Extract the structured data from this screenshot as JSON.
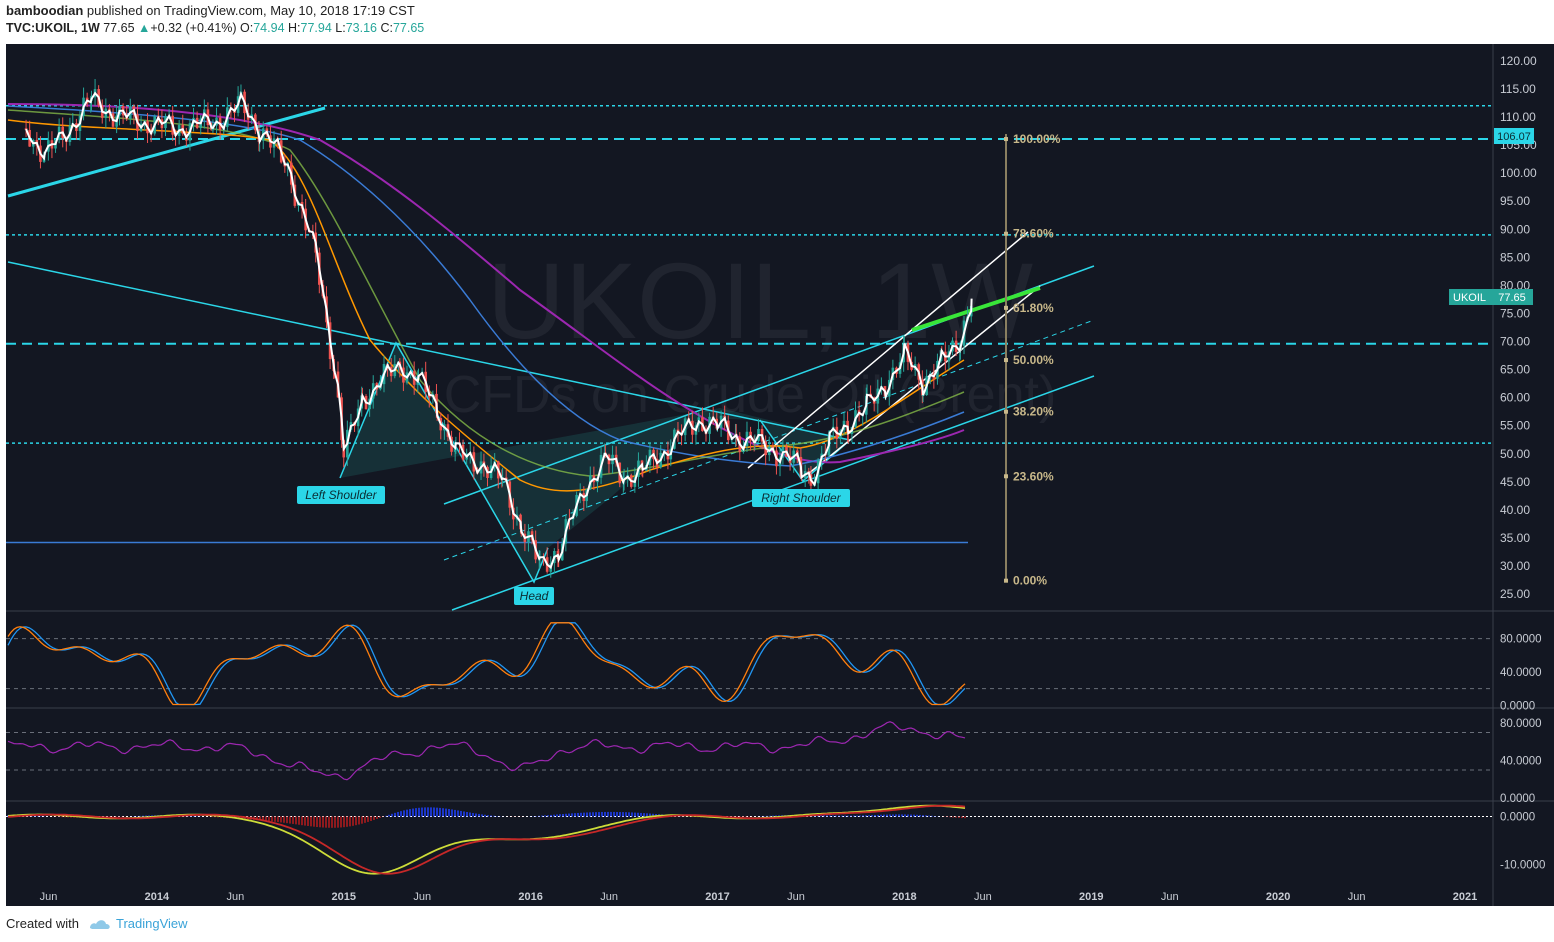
{
  "header": {
    "user": "bamboodian",
    "published": "published on TradingView.com, May 10, 2018 17:19 CST",
    "symbol": "TVC:UKOIL, 1W",
    "last": "77.65",
    "change": "+0.32 (+0.41%)",
    "o_label": "O:",
    "o_val": "74.94",
    "h_label": "H:",
    "h_val": "77.94",
    "l_label": "L:",
    "l_val": "73.16",
    "c_label": "C:",
    "c_val": "77.65"
  },
  "watermark": {
    "line1": "UKOIL, 1W",
    "line2": "CFDs on Crude Oil (Brent)"
  },
  "footer": {
    "created": "Created with",
    "brand": "TradingView"
  },
  "colors": {
    "background": "#131722",
    "bullish": "#26a69a",
    "bearish": "#ef5350",
    "cyan": "#2bd6e8",
    "white": "#ffffff",
    "green_line": "#39e639",
    "fib": "#c8b88a",
    "purple": "#9c27b0"
  },
  "chart_data": [
    {
      "type": "line",
      "panel": "price",
      "title": "UKOIL, 1W",
      "ylim": [
        22,
        123
      ],
      "y_ticks": [
        120,
        115,
        110,
        105,
        100,
        95,
        90,
        85,
        80,
        75,
        70,
        65,
        60,
        55,
        50,
        45,
        40,
        35,
        30,
        25
      ],
      "y_tick_labels": [
        "120.00",
        "115.00",
        "110.00",
        "105.00",
        "100.00",
        "95.00",
        "90.00",
        "85.00",
        "80.00",
        "75.00",
        "70.00",
        "65.00",
        "60.00",
        "55.00",
        "50.00",
        "45.00",
        "40.00",
        "35.00",
        "30.00",
        "25.00"
      ],
      "x_ticks": [
        "Jun",
        "2014",
        "Jun",
        "2015",
        "Jun",
        "2016",
        "Jun",
        "2017",
        "Jun",
        "2018",
        "Jun",
        "2019",
        "Jun",
        "2020",
        "Jun",
        "2021"
      ],
      "series": [
        {
          "name": "UKOIL",
          "values": [
            [
              2013.3,
              108
            ],
            [
              2013.4,
              103
            ],
            [
              2013.55,
              109
            ],
            [
              2013.65,
              113
            ],
            [
              2013.8,
              110
            ],
            [
              2013.95,
              109
            ],
            [
              2014.1,
              108
            ],
            [
              2014.3,
              109
            ],
            [
              2014.45,
              112
            ],
            [
              2014.55,
              108
            ],
            [
              2014.7,
              101
            ],
            [
              2014.85,
              85
            ],
            [
              2014.95,
              65
            ],
            [
              2015.0,
              50
            ],
            [
              2015.1,
              60
            ],
            [
              2015.3,
              66
            ],
            [
              2015.4,
              63
            ],
            [
              2015.5,
              58
            ],
            [
              2015.6,
              50
            ],
            [
              2015.75,
              48
            ],
            [
              2015.85,
              45
            ],
            [
              2015.95,
              37
            ],
            [
              2016.05,
              30
            ],
            [
              2016.15,
              33
            ],
            [
              2016.3,
              45
            ],
            [
              2016.4,
              49
            ],
            [
              2016.5,
              46
            ],
            [
              2016.6,
              47
            ],
            [
              2016.75,
              52
            ],
            [
              2016.9,
              56
            ],
            [
              2017.0,
              55
            ],
            [
              2017.1,
              53
            ],
            [
              2017.2,
              52
            ],
            [
              2017.35,
              50
            ],
            [
              2017.45,
              47
            ],
            [
              2017.5,
              46
            ],
            [
              2017.6,
              52
            ],
            [
              2017.7,
              56
            ],
            [
              2017.8,
              58
            ],
            [
              2017.9,
              63
            ],
            [
              2018.0,
              67
            ],
            [
              2018.1,
              63
            ],
            [
              2018.2,
              66
            ],
            [
              2018.3,
              71
            ],
            [
              2018.36,
              77.65
            ]
          ]
        }
      ],
      "horizontal_levels": [
        112,
        106.07,
        89,
        69.6,
        51.9,
        34.2
      ],
      "last_price_label": "UKOIL",
      "last_price_value": "77.65",
      "level_label": "106.07",
      "fibonacci": {
        "levels": [
          {
            "label": "100.00%",
            "price": 106.07
          },
          {
            "label": "78.60%",
            "price": 89.2
          },
          {
            "label": "61.80%",
            "price": 76.0
          },
          {
            "label": "50.00%",
            "price": 66.7
          },
          {
            "label": "38.20%",
            "price": 57.5
          },
          {
            "label": "23.60%",
            "price": 46.0
          },
          {
            "label": "0.00%",
            "price": 27.4
          }
        ]
      },
      "annotations": [
        "Left Shoulder",
        "Head",
        "Right Shoulder"
      ]
    },
    {
      "type": "line",
      "panel": "stochastic",
      "ylim": [
        -2,
        112
      ],
      "y_ticks": [
        80,
        40,
        0
      ],
      "y_tick_labels": [
        "80.0000",
        "40.0000",
        "0.0000"
      ],
      "series": [
        {
          "name": "",
          "values": []
        }
      ]
    },
    {
      "type": "line",
      "panel": "rsi",
      "ylim": [
        -2,
        95
      ],
      "y_ticks": [
        80,
        40,
        0
      ],
      "y_tick_labels": [
        "80.0000",
        "40.0000",
        "0.0000"
      ],
      "series": [
        {
          "name": "",
          "values": []
        }
      ]
    },
    {
      "type": "line",
      "panel": "macd",
      "ylim": [
        -14,
        3
      ],
      "y_ticks": [
        0,
        -10
      ],
      "y_tick_labels": [
        "0.0000",
        "-10.0000"
      ],
      "series": [
        {
          "name": "",
          "values": []
        }
      ]
    }
  ]
}
